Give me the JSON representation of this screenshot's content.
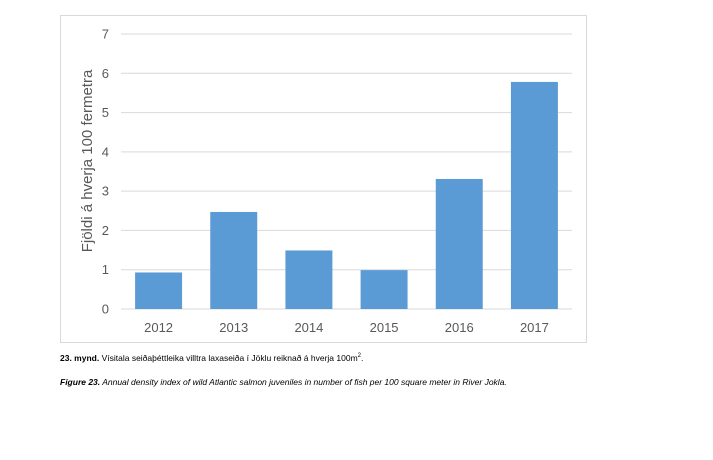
{
  "chart_data": {
    "type": "bar",
    "categories": [
      "2012",
      "2013",
      "2014",
      "2015",
      "2016",
      "2017"
    ],
    "values": [
      0.93,
      2.47,
      1.49,
      0.99,
      3.31,
      5.78
    ],
    "ylabel": "Fjöldi á hverja 100 fermetra",
    "xlabel": "",
    "title": "",
    "ylim": [
      0,
      7
    ],
    "yticks": [
      0,
      1,
      2,
      3,
      4,
      5,
      6,
      7
    ],
    "grid": true,
    "bar_color": "#5b9bd5",
    "grid_color": "#d9d9d9"
  },
  "captions": {
    "icelandic_label": "23. mynd.",
    "icelandic_text": " Vísitala seiðaþéttleika villtra laxaseiða í Jöklu reiknað á hverja 100m",
    "icelandic_sup": "2",
    "icelandic_end": ".",
    "english_label": "Figure 23.",
    "english_text": " Annual density index of wild Atlantic salmon juveniles in number of fish per 100 square meter in River Jokla."
  }
}
